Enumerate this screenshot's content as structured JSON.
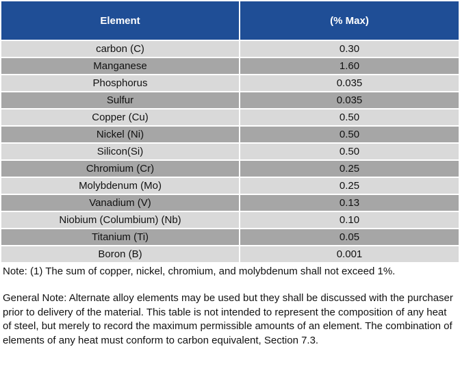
{
  "table": {
    "headers": [
      "Element",
      "(% Max)"
    ],
    "rows": [
      {
        "element": "carbon (C)",
        "max": "0.30"
      },
      {
        "element": "Manganese",
        "max": "1.60"
      },
      {
        "element": "Phosphorus",
        "max": "0.035"
      },
      {
        "element": "Sulfur",
        "max": "0.035"
      },
      {
        "element": "Copper (Cu)",
        "max": "0.50"
      },
      {
        "element": "Nickel (Ni)",
        "max": "0.50"
      },
      {
        "element": "Silicon(Si)",
        "max": "0.50"
      },
      {
        "element": "Chromium (Cr)",
        "max": "0.25"
      },
      {
        "element": "Molybdenum (Mo)",
        "max": "0.25"
      },
      {
        "element": "Vanadium (V)",
        "max": "0.13"
      },
      {
        "element": "Niobium (Columbium) (Nb)",
        "max": "0.10"
      },
      {
        "element": "Titanium (Ti)",
        "max": "0.05"
      },
      {
        "element": "Boron (B)",
        "max": "0.001"
      }
    ]
  },
  "note": "Note: (1) The sum of copper, nickel, chromium, and molybdenum shall not exceed 1%.",
  "general_note": "General Note: Alternate alloy elements may be used but they shall be discussed with the purchaser prior to delivery of the material. This table is not intended to represent the composition of any heat of steel, but merely to record the maximum permissible amounts of an element. The combination of elements of any heat must conform to carbon equivalent, Section 7.3.",
  "colors": {
    "header_bg": "#1f4e96",
    "row_light": "#d9d9d9",
    "row_dark": "#a6a6a6"
  }
}
